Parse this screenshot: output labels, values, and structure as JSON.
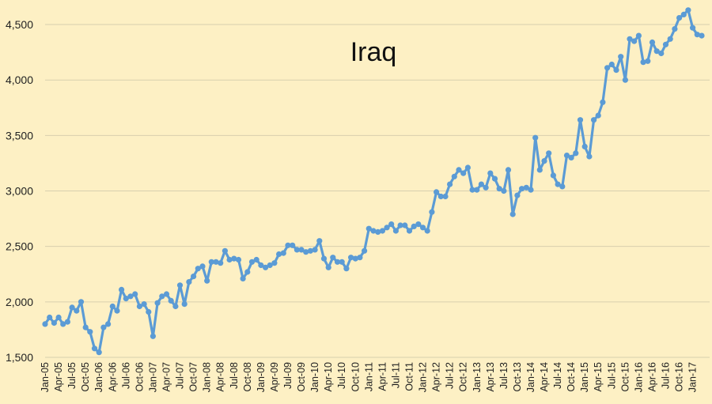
{
  "chart_data": {
    "type": "line",
    "title": "Iraq",
    "xlabel": "",
    "ylabel": "",
    "ylim": [
      1500,
      4600
    ],
    "yticks": [
      1500,
      2000,
      2500,
      3000,
      3500,
      4000,
      4500
    ],
    "ytick_labels": [
      "1,500",
      "2,000",
      "2,500",
      "3,000",
      "3,500",
      "4,000",
      "4,500"
    ],
    "xtick_labels": [
      "Jan-05",
      "Apr-05",
      "Jul-05",
      "Oct-05",
      "Jan-06",
      "Apr-06",
      "Jul-06",
      "Oct-06",
      "Jan-07",
      "Apr-07",
      "Jul-07",
      "Oct-07",
      "Jan-08",
      "Apr-08",
      "Jul-08",
      "Oct-08",
      "Jan-09",
      "Apr-09",
      "Jul-09",
      "Oct-09",
      "Jan-10",
      "Apr-10",
      "Jul-10",
      "Oct-10",
      "Jan-11",
      "Apr-11",
      "Jul-11",
      "Oct-11",
      "Jan-12",
      "Apr-12",
      "Jul-12",
      "Oct-12",
      "Jan-13",
      "Apr-13",
      "Jul-13",
      "Oct-13",
      "Jan-14",
      "Apr-14",
      "Jul-14",
      "Oct-14",
      "Jan-15",
      "Apr-15",
      "Jul-15",
      "Oct-15",
      "Jan-16",
      "Apr-16",
      "Jul-16",
      "Oct-16",
      "Jan-17"
    ],
    "grid": true,
    "line_color": "#5b9bd5",
    "series": [
      {
        "values": [
          1800,
          1860,
          1810,
          1860,
          1800,
          1820,
          1950,
          1920,
          2000,
          1770,
          1730,
          1580,
          1545,
          1770,
          1800,
          1960,
          1920,
          2110,
          2030,
          2050,
          2070,
          1960,
          1980,
          1910,
          1690,
          1990,
          2050,
          2070,
          2010,
          1960,
          2150,
          1980,
          2180,
          2230,
          2300,
          2320,
          2190,
          2360,
          2360,
          2350,
          2460,
          2380,
          2390,
          2380,
          2210,
          2270,
          2360,
          2380,
          2330,
          2310,
          2330,
          2350,
          2430,
          2440,
          2510,
          2510,
          2470,
          2470,
          2450,
          2460,
          2470,
          2550,
          2390,
          2310,
          2400,
          2360,
          2360,
          2300,
          2400,
          2390,
          2400,
          2460,
          2660,
          2640,
          2630,
          2640,
          2670,
          2700,
          2640,
          2690,
          2690,
          2640,
          2680,
          2700,
          2670,
          2640,
          2810,
          2990,
          2950,
          2950,
          3060,
          3130,
          3190,
          3160,
          3210,
          3010,
          3010,
          3060,
          3030,
          3160,
          3110,
          3020,
          3000,
          3190,
          2790,
          2960,
          3020,
          3030,
          3010,
          3480,
          3190,
          3270,
          3340,
          3140,
          3060,
          3040,
          3320,
          3300,
          3340,
          3640,
          3400,
          3310,
          3640,
          3680,
          3800,
          4110,
          4140,
          4090,
          4210,
          4000,
          4370,
          4350,
          4400,
          4160,
          4170,
          4340,
          4260,
          4240,
          4320,
          4370,
          4460,
          4560,
          4590,
          4630,
          4470,
          4410,
          4400
        ]
      }
    ]
  }
}
